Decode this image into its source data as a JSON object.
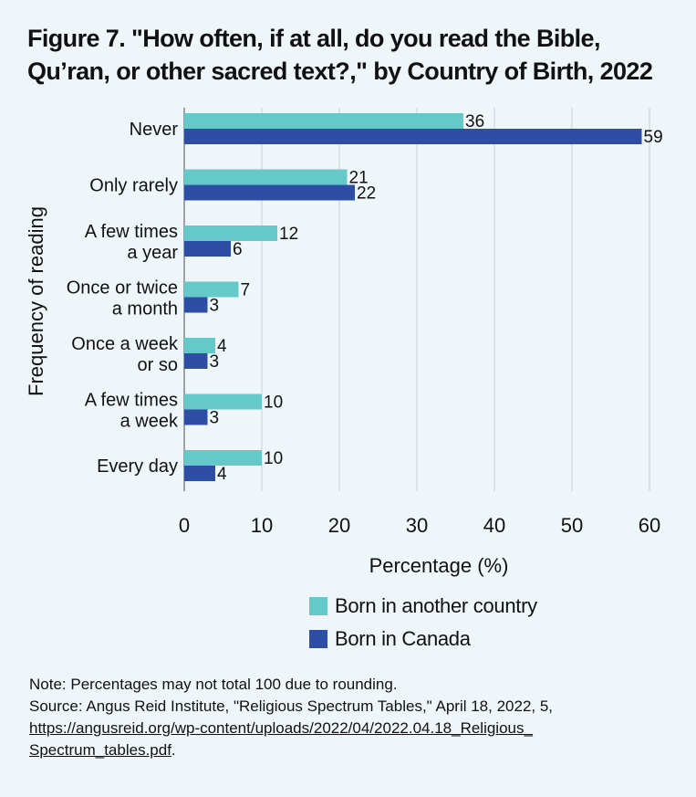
{
  "title_line1": "Figure 7. \"How often, if at all, do you read the Bible,",
  "title_line2": "Qu’ran, or other sacred text?,\" by Country of Birth, 2022",
  "chart_data": {
    "type": "bar",
    "orientation": "horizontal",
    "categories": [
      [
        "Never"
      ],
      [
        "Only rarely"
      ],
      [
        "A few times",
        "a year"
      ],
      [
        "Once or twice",
        "a month"
      ],
      [
        "Once a week",
        "or so"
      ],
      [
        "A few times",
        "a week"
      ],
      [
        "Every day"
      ]
    ],
    "series": [
      {
        "name": "Born in another country",
        "color": "#66c9c9",
        "values": [
          36,
          21,
          12,
          7,
          4,
          10,
          10
        ]
      },
      {
        "name": "Born in Canada",
        "color": "#2e4ea6",
        "values": [
          59,
          22,
          6,
          3,
          3,
          3,
          4
        ]
      }
    ],
    "xlabel": "Percentage (%)",
    "ylabel": "Frequency of reading",
    "xlim": [
      0,
      60
    ],
    "xticks": [
      "0",
      "10",
      "20",
      "30",
      "40",
      "50",
      "60"
    ],
    "grid": "vertical",
    "legend_position": "bottom"
  },
  "note_line": "Note: Percentages may not total 100 due to rounding.",
  "source_line": "Source: Angus Reid Institute, \"Religious Spectrum Tables,\" April 18, 2022, 5,",
  "link_line1": "https://angusreid.org/wp-content/uploads/2022/04/2022.04.18_Religious_",
  "link_line2": "Spectrum_tables.pdf",
  "link_suffix": "."
}
